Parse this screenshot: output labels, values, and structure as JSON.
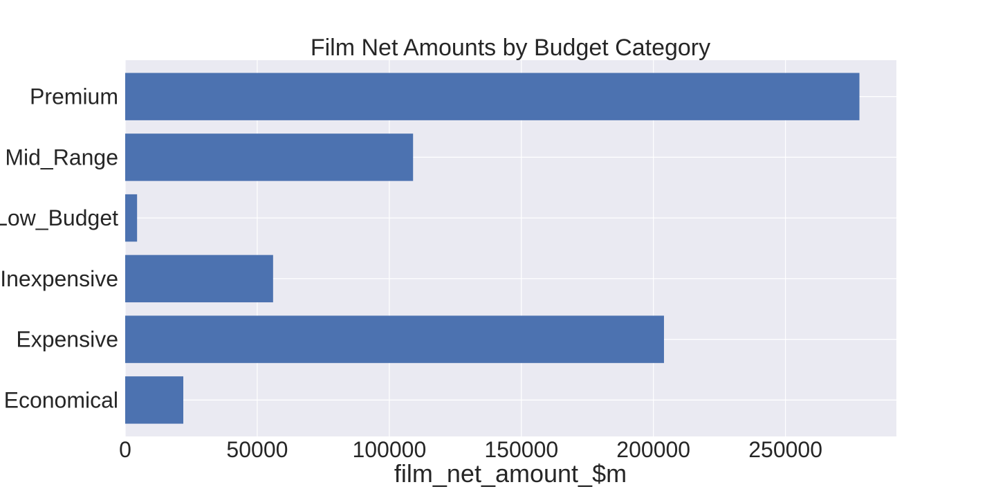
{
  "chart_data": {
    "type": "bar",
    "orientation": "horizontal",
    "title": "Film Net Amounts by Budget Category",
    "xlabel": "film_net_amount_$m",
    "ylabel": "",
    "categories": [
      "Economical",
      "Expensive",
      "Inexpensive",
      "Low_Budget",
      "Mid_Range",
      "Premium"
    ],
    "values": [
      22000,
      204000,
      56000,
      4500,
      109000,
      278000
    ],
    "xlim": [
      0,
      292000
    ],
    "xticks": [
      0,
      50000,
      100000,
      150000,
      200000,
      250000
    ],
    "xtick_labels": [
      "0",
      "50000",
      "100000",
      "150000",
      "200000",
      "250000"
    ],
    "grid": true,
    "colors": {
      "bar": "#4c72b0",
      "background": "#eaeaf2",
      "grid": "#ffffff",
      "text": "#262626"
    }
  }
}
